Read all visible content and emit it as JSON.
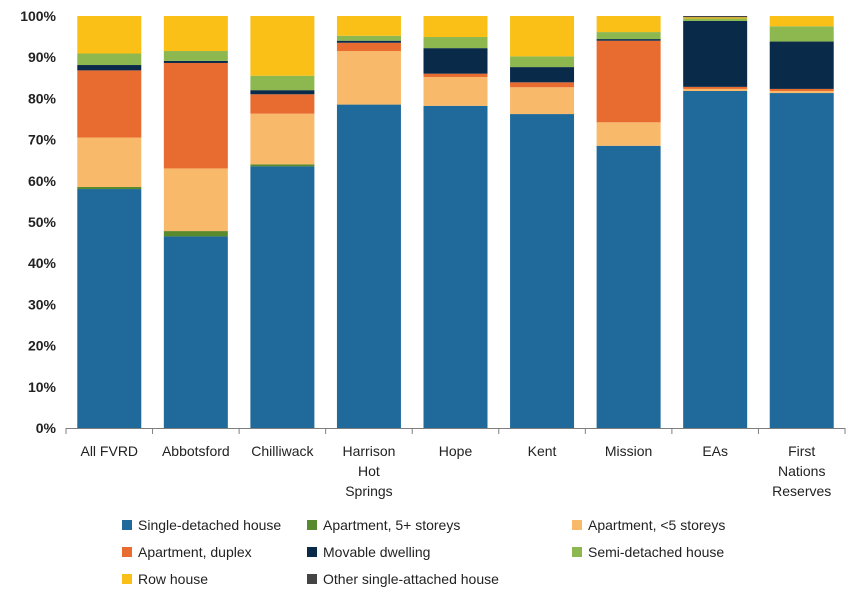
{
  "chart_data": {
    "type": "bar",
    "stacked": true,
    "grid": false,
    "legend_position": "bottom",
    "ylim": [
      0,
      100
    ],
    "y_ticks": [
      "0%",
      "10%",
      "20%",
      "30%",
      "40%",
      "50%",
      "60%",
      "70%",
      "80%",
      "90%",
      "100%"
    ],
    "categories": [
      [
        "All FVRD"
      ],
      [
        "Abbotsford"
      ],
      [
        "Chilliwack"
      ],
      [
        "Harrison",
        "Hot",
        "Springs"
      ],
      [
        "Hope"
      ],
      [
        "Kent"
      ],
      [
        "Mission"
      ],
      [
        "EAs"
      ],
      [
        "First",
        "Nations",
        "Reserves"
      ]
    ],
    "series": [
      {
        "name": "Single-detached house",
        "color": "#1f6a9a",
        "values": [
          58.0,
          46.5,
          63.5,
          78.5,
          78.2,
          76.2,
          68.5,
          81.8,
          81.3
        ]
      },
      {
        "name": "Apartment, 5+ storeys",
        "color": "#5a8a2e",
        "values": [
          0.5,
          1.3,
          0.5,
          0.0,
          0.0,
          0.0,
          0.0,
          0.0,
          0.0
        ]
      },
      {
        "name": "Apartment, <5 storeys",
        "color": "#f9b96a",
        "values": [
          12.0,
          15.2,
          12.3,
          13.0,
          7.0,
          6.5,
          5.7,
          0.5,
          0.5
        ]
      },
      {
        "name": "Apartment, duplex",
        "color": "#e86c30",
        "values": [
          16.3,
          25.6,
          4.7,
          2.0,
          0.8,
          1.2,
          19.8,
          0.5,
          0.5
        ]
      },
      {
        "name": "Movable dwelling",
        "color": "#0a2a4a",
        "values": [
          1.3,
          0.5,
          1.0,
          0.5,
          6.2,
          3.7,
          0.4,
          16.0,
          11.5
        ]
      },
      {
        "name": "Semi-detached house",
        "color": "#8db850",
        "values": [
          2.8,
          2.4,
          3.5,
          1.2,
          2.7,
          2.6,
          1.7,
          0.6,
          3.7
        ]
      },
      {
        "name": "Row house",
        "color": "#fac018",
        "values": [
          9.1,
          8.5,
          14.5,
          4.8,
          5.1,
          9.8,
          3.9,
          0.3,
          2.5
        ]
      },
      {
        "name": "Other single-attached house",
        "color": "#444444",
        "values": [
          0.0,
          0.0,
          0.0,
          0.0,
          0.0,
          0.0,
          0.0,
          0.3,
          0.0
        ]
      }
    ]
  }
}
